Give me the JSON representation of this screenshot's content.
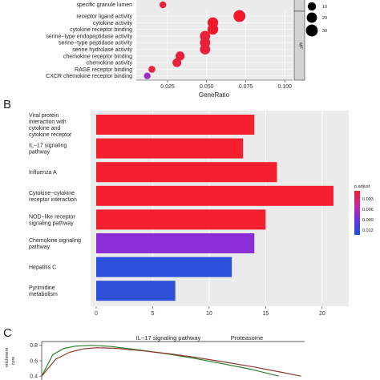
{
  "panel_labels": {
    "b": "B",
    "c": "C"
  },
  "chart_data": [
    {
      "type": "scatter",
      "panel": "A",
      "xlabel": "GeneRatio",
      "xlim": [
        0.005,
        0.105
      ],
      "x_ticks": [
        "0.025",
        "0.050",
        "0.075",
        "0.100"
      ],
      "x_tick_values": [
        0.025,
        0.05,
        0.075,
        0.1
      ],
      "facet_label": "MF",
      "partial_category": "specific granule lumen",
      "partial_point": {
        "x": 0.022,
        "color": "#e8243c"
      },
      "categories": [
        "receptor ligand activity",
        "cytokine activity",
        "cytokine receptor binding",
        "serine−type endopeptidase activity",
        "serine−type peptidase activity",
        "serine hydrolase activity",
        "chemokine receptor binding",
        "chemokine activity",
        "RAGE receptor binding",
        "CXCR chemokine receptor binding"
      ],
      "points": [
        {
          "x": 0.071,
          "count": 30,
          "color": "#f01a2c"
        },
        {
          "x": 0.054,
          "count": 22,
          "color": "#f01a2c"
        },
        {
          "x": 0.054,
          "count": 22,
          "color": "#f01a2c"
        },
        {
          "x": 0.049,
          "count": 20,
          "color": "#e8203a"
        },
        {
          "x": 0.049,
          "count": 20,
          "color": "#e8203a"
        },
        {
          "x": 0.049,
          "count": 20,
          "color": "#e8203a"
        },
        {
          "x": 0.033,
          "count": 13,
          "color": "#ea1f38"
        },
        {
          "x": 0.031,
          "count": 12,
          "color": "#ea1f38"
        },
        {
          "x": 0.015,
          "count": 5,
          "color": "#e9233e"
        },
        {
          "x": 0.012,
          "count": 4,
          "color": "#9a2fc8"
        }
      ],
      "size_legend": {
        "labels": [
          "10",
          "20",
          "30"
        ],
        "values": [
          10,
          20,
          30
        ]
      }
    },
    {
      "type": "bar",
      "panel": "B",
      "orientation": "horizontal",
      "categories": [
        "Viral protein interaction with cytokine and cytokine receptor",
        "IL−17 signaling pathway",
        "Influenza A",
        "Cytokine−cytokine receptor interaction",
        "NOD−like receptor signaling pathway",
        "Chemokine signaling pathway",
        "Hepatitis C",
        "Pyrimidine metabolism"
      ],
      "category_lines": [
        [
          "Viral protein",
          "interaction with",
          "cytokine and",
          "cytokine receptor"
        ],
        [
          "IL−17 signaling",
          "pathway"
        ],
        [
          "Influenza A"
        ],
        [
          "Cytokine−cytokine",
          "receptor interaction"
        ],
        [
          "NOD−like receptor",
          "signaling pathway"
        ],
        [
          "Chemokine signaling",
          "pathway"
        ],
        [
          "Hepatitis C"
        ],
        [
          "Pyrimidine",
          "metabolism"
        ]
      ],
      "values": [
        14,
        13,
        16,
        21,
        15,
        14,
        12,
        7
      ],
      "colors": [
        "#f4202e",
        "#f4202e",
        "#f4202e",
        "#f4202e",
        "#f4202e",
        "#8c2ed8",
        "#2a4fdc",
        "#2f4fd8"
      ],
      "xlim": [
        0,
        22
      ],
      "x_ticks": [
        "0",
        "5",
        "10",
        "15",
        "20"
      ],
      "x_tick_values": [
        0,
        5,
        10,
        15,
        20
      ],
      "legend": {
        "title": "p.adjust",
        "labels": [
          "0.003",
          "0.006",
          "0.009",
          "0.012"
        ],
        "gradient": [
          "#f21d2a",
          "#c624a2",
          "#6d33e0",
          "#1f4fe6"
        ]
      }
    },
    {
      "type": "line",
      "panel": "C",
      "titles": [
        "IL−17 signaling pathway",
        "Proteasome"
      ],
      "ylabel_fragments": [
        "nrichment",
        "core"
      ],
      "y_ticks": [
        "0.8",
        "0.6",
        "0.4"
      ],
      "y_tick_values": [
        0.8,
        0.6,
        0.4
      ],
      "ylim": [
        0.35,
        0.85
      ],
      "series": [
        {
          "color": "#2e7d2e",
          "x": [
            0.0,
            0.04,
            0.08,
            0.12,
            0.18,
            0.25,
            0.35,
            0.45,
            0.55,
            0.65,
            0.75,
            0.85
          ],
          "y": [
            0.4,
            0.68,
            0.76,
            0.79,
            0.8,
            0.785,
            0.74,
            0.69,
            0.63,
            0.56,
            0.49,
            0.4
          ]
        },
        {
          "color": "#8b3a2e",
          "x": [
            0.0,
            0.05,
            0.1,
            0.15,
            0.2,
            0.27,
            0.36,
            0.46,
            0.56,
            0.66,
            0.76,
            0.86,
            0.93
          ],
          "y": [
            0.4,
            0.62,
            0.71,
            0.755,
            0.77,
            0.76,
            0.73,
            0.69,
            0.64,
            0.58,
            0.52,
            0.45,
            0.4
          ]
        }
      ]
    }
  ]
}
